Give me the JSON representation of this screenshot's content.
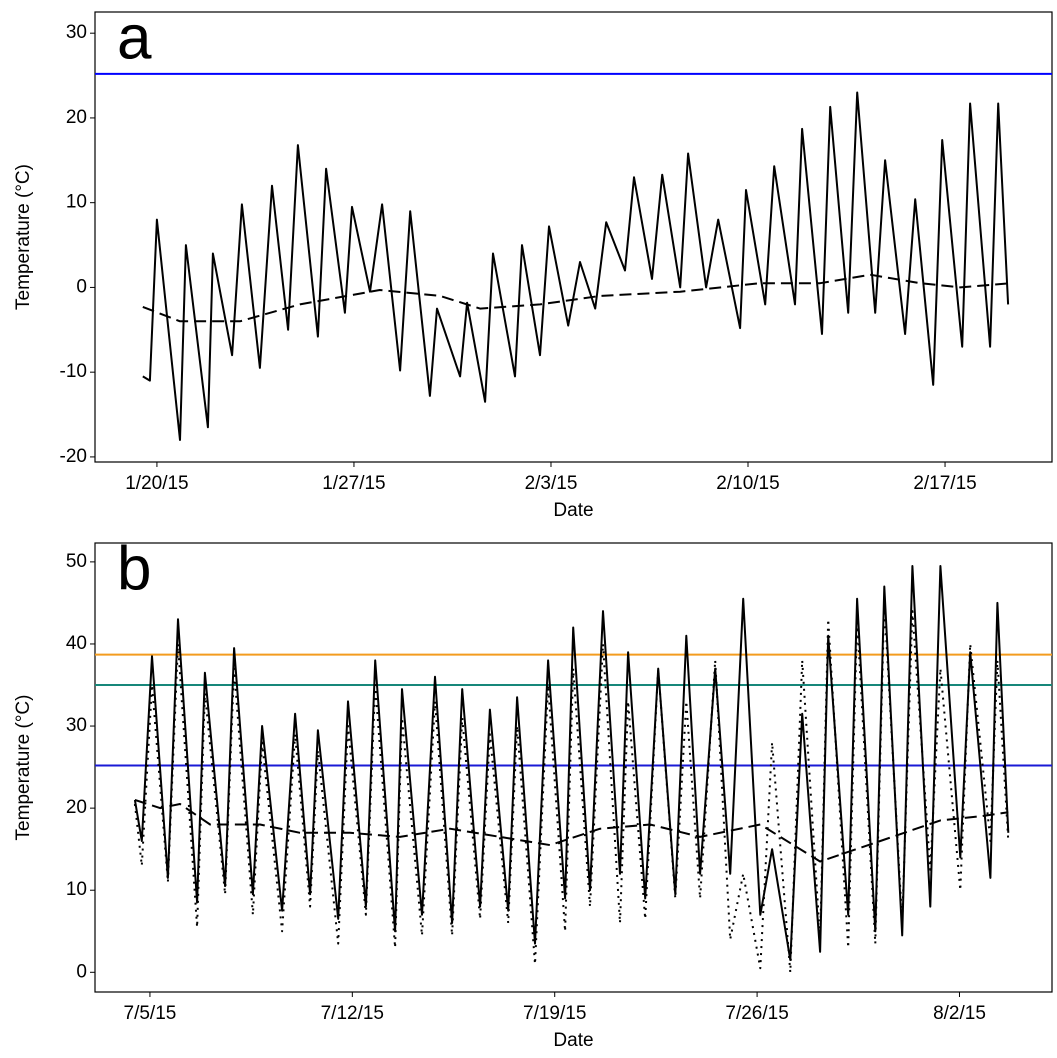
{
  "chart_data": [
    {
      "type": "line",
      "annotation": "a",
      "x_label": "Date",
      "y_label": "Temperature (°C)",
      "xlim": [
        -2.2,
        31.8
      ],
      "ylim": [
        -20.6,
        32.5
      ],
      "xticks": [
        {
          "value": 0,
          "label": "1/20/15"
        },
        {
          "value": 7,
          "label": "1/27/15"
        },
        {
          "value": 14,
          "label": "2/3/15"
        },
        {
          "value": 21,
          "label": "2/10/15"
        },
        {
          "value": 28,
          "label": "2/17/15"
        }
      ],
      "yticks": [
        -20,
        -10,
        0,
        10,
        20,
        30
      ],
      "hlines": [
        {
          "value": 25.2,
          "color": "#0000ff"
        }
      ],
      "series": [
        {
          "color": "#000000",
          "dash": "solid",
          "x": [
            -0.5,
            -0.25,
            0,
            0.82,
            1.03,
            1.81,
            1.99,
            2.67,
            3.02,
            3.66,
            4.09,
            4.66,
            5.01,
            5.72,
            6.01,
            6.68,
            6.93,
            7.57,
            8,
            8.64,
            9,
            9.7,
            9.95,
            10.77,
            11.02,
            11.66,
            11.94,
            12.72,
            12.97,
            13.61,
            13.93,
            14.61,
            15.03,
            15.57,
            15.96,
            16.63,
            16.95,
            17.59,
            17.95,
            18.59,
            18.87,
            19.51,
            19.94,
            20.72,
            20.93,
            21.61,
            21.93,
            22.67,
            22.92,
            23.63,
            23.92,
            24.56,
            24.88,
            25.52,
            25.87,
            26.58,
            26.94,
            27.58,
            27.9,
            28.61,
            28.89,
            29.6,
            29.89,
            30.24
          ],
          "values": [
            -10.5,
            -11,
            8,
            -18,
            5,
            -16.5,
            4,
            -8,
            9.8,
            -9.5,
            12,
            -5,
            16.8,
            -5.8,
            14,
            -3,
            9.5,
            -0.5,
            9.8,
            -9.8,
            9,
            -12.8,
            -2.5,
            -10.5,
            -1.8,
            -13.5,
            4,
            -10.5,
            5,
            -8,
            7.2,
            -4.5,
            3,
            -2.5,
            7.7,
            2,
            13,
            1,
            13.3,
            0,
            15.8,
            0,
            8,
            -4.8,
            11.5,
            -2,
            14.3,
            -2,
            18.7,
            -5.5,
            21.3,
            -3,
            23,
            -3,
            15,
            -5.5,
            10.4,
            -11.5,
            17.4,
            -7,
            21.7,
            -7,
            21.7,
            -2
          ]
        },
        {
          "color": "#000000",
          "dash": "dashed",
          "x": [
            -0.5,
            0.82,
            2.95,
            5.08,
            7.92,
            10.06,
            11.48,
            13.61,
            15.75,
            18.59,
            21.43,
            23.56,
            25.34,
            27.12,
            28.54,
            30.31
          ],
          "values": [
            -2.3,
            -4,
            -4,
            -2,
            -0.3,
            -1,
            -2.5,
            -2,
            -1,
            -0.5,
            0.5,
            0.5,
            1.5,
            0.5,
            0,
            0.5
          ]
        }
      ]
    },
    {
      "type": "line",
      "annotation": "b",
      "x_label": "Date",
      "y_label": "Temperature (°C)",
      "xlim": [
        -1.9,
        31.2
      ],
      "ylim": [
        -2.4,
        52.3
      ],
      "xticks": [
        {
          "value": 0,
          "label": "7/5/15"
        },
        {
          "value": 7,
          "label": "7/12/15"
        },
        {
          "value": 14,
          "label": "7/19/15"
        },
        {
          "value": 21,
          "label": "7/26/15"
        },
        {
          "value": 28,
          "label": "8/2/15"
        }
      ],
      "yticks": [
        0,
        10,
        20,
        30,
        40,
        50
      ],
      "hlines": [
        {
          "value": 38.7,
          "color": "#f39c1f"
        },
        {
          "value": 35,
          "color": "#17877a"
        },
        {
          "value": 25.2,
          "color": "#1a1ad6"
        }
      ],
      "series": [
        {
          "color": "#000000",
          "dash": "solid",
          "x": [
            -0.52,
            -0.28,
            0.07,
            0.62,
            0.97,
            1.63,
            1.9,
            2.6,
            2.91,
            3.56,
            3.88,
            4.57,
            5.02,
            5.54,
            5.81,
            6.51,
            6.85,
            7.47,
            7.79,
            8.48,
            8.72,
            9.41,
            9.86,
            10.45,
            10.8,
            11.42,
            11.76,
            12.39,
            12.7,
            13.32,
            13.77,
            14.36,
            14.64,
            15.22,
            15.67,
            16.26,
            16.54,
            17.13,
            17.58,
            18.17,
            18.55,
            19.03,
            19.55,
            20.07,
            20.52,
            21.11,
            21.52,
            22.15,
            22.56,
            23.18,
            23.46,
            24.15,
            24.46,
            25.09,
            25.4,
            26.02,
            26.37,
            26.99,
            27.34,
            28.03,
            28.37,
            29.07,
            29.31,
            29.69
          ],
          "values": [
            21,
            16,
            38.5,
            11.5,
            43,
            8.5,
            36.5,
            10.5,
            39.5,
            9.5,
            30,
            7.5,
            31.5,
            9.5,
            29.5,
            6.5,
            33,
            8,
            38,
            5,
            34.5,
            7,
            36,
            6,
            34.5,
            8,
            32,
            7.5,
            33.5,
            3.5,
            38,
            9,
            42,
            10,
            44,
            12,
            39,
            9,
            37,
            9.5,
            41,
            12,
            37,
            12,
            45.5,
            7,
            15,
            1.5,
            31.5,
            2.5,
            41,
            7,
            45.5,
            5,
            47,
            4.5,
            49.5,
            8,
            49.5,
            14,
            39,
            11.5,
            45,
            17
          ]
        },
        {
          "color": "#000000",
          "dash": "dotted",
          "x": [
            -0.52,
            -0.28,
            0.07,
            0.62,
            0.97,
            1.63,
            1.9,
            2.6,
            2.91,
            3.56,
            3.88,
            4.57,
            5.02,
            5.54,
            5.81,
            6.51,
            6.85,
            7.47,
            7.79,
            8.48,
            8.72,
            9.41,
            9.86,
            10.45,
            10.8,
            11.42,
            11.76,
            12.39,
            12.7,
            13.32,
            13.77,
            14.36,
            14.64,
            15.22,
            15.67,
            16.26,
            16.54,
            17.13,
            17.58,
            18.17,
            18.55,
            19.03,
            19.55,
            20.07,
            20.52,
            21.11,
            21.52,
            22.15,
            22.56,
            23.18,
            23.46,
            24.15,
            24.46,
            25.09,
            25.4,
            26.02,
            26.37,
            26.99,
            27.34,
            28.03,
            28.37,
            29.07,
            29.31,
            29.69
          ],
          "values": [
            20.5,
            13,
            35,
            11,
            40,
            5.5,
            34,
            9.5,
            37,
            7,
            28,
            5,
            29,
            8,
            27,
            3.5,
            30,
            7,
            35,
            3,
            31,
            4.5,
            33,
            4.5,
            31,
            6.5,
            29,
            6,
            30,
            1,
            35,
            5,
            37,
            8,
            40,
            6,
            33,
            6.5,
            37,
            9,
            33,
            9,
            38,
            4,
            12,
            0.5,
            28,
            0,
            38,
            4,
            43,
            3,
            43,
            3.5,
            45,
            6,
            44,
            12.5,
            37,
            10,
            40,
            16,
            38,
            16
          ]
        },
        {
          "color": "#000000",
          "dash": "dashed",
          "x": [
            -0.52,
            0.35,
            1.04,
            2.08,
            3.81,
            5.19,
            6.92,
            8.65,
            10.38,
            12.11,
            13.84,
            15.57,
            17.3,
            19.03,
            21.11,
            23.18,
            25.26,
            27.34,
            28.72,
            29.69
          ],
          "values": [
            21,
            20,
            20.5,
            18,
            18,
            17,
            17,
            16.5,
            17.5,
            16.5,
            15.5,
            17.5,
            18,
            16.5,
            18,
            13.5,
            16,
            18.5,
            19,
            19.5
          ]
        }
      ]
    }
  ]
}
